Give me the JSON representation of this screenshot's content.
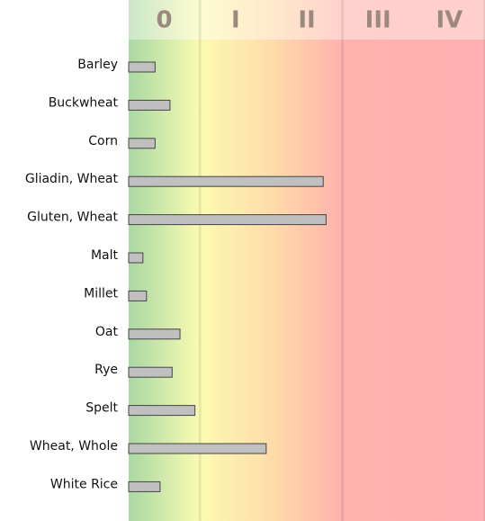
{
  "chart_data": {
    "type": "bar",
    "orientation": "horizontal",
    "categories": [
      "Barley",
      "Buckwheat",
      "Corn",
      "Gliadin, Wheat",
      "Gluten, Wheat",
      "Malt",
      "Millet",
      "Oat",
      "Rye",
      "Spelt",
      "Wheat, Whole",
      "White Rice"
    ],
    "values": [
      0.37,
      0.58,
      0.37,
      2.73,
      2.77,
      0.2,
      0.25,
      0.72,
      0.61,
      0.93,
      1.93,
      0.44
    ],
    "color": "#c0c0c0",
    "xlim": [
      0,
      5
    ],
    "xticks": [
      {
        "value": 0.5,
        "label": "0"
      },
      {
        "value": 1.5,
        "label": "I"
      },
      {
        "value": 2.5,
        "label": "II"
      },
      {
        "value": 3.5,
        "label": "III"
      },
      {
        "value": 4.5,
        "label": "IV"
      }
    ]
  }
}
